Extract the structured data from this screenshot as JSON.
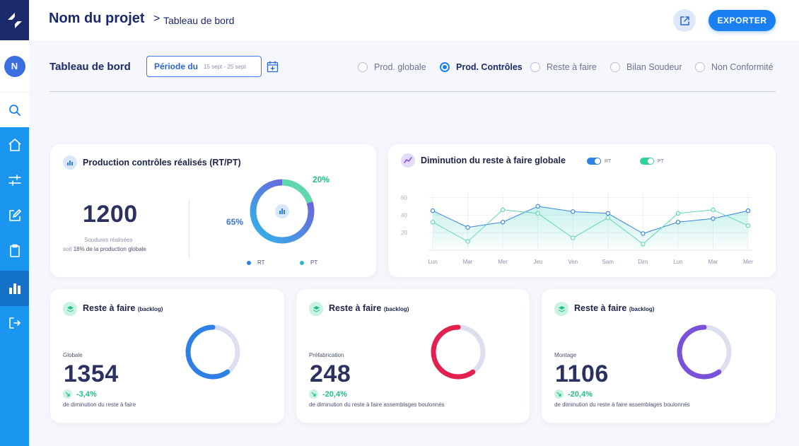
{
  "header": {
    "project_title": "Nom du projet",
    "breadcrumb_sep": ">",
    "breadcrumb": "Tableau de bord",
    "export_label": "EXPORTER"
  },
  "sidebar": {
    "avatar_initial": "N",
    "items": [
      "search-icon",
      "home-icon",
      "sliders-icon",
      "edit-icon",
      "clipboard-icon",
      "bar-chart-icon",
      "logout-icon"
    ],
    "active": "bar-chart-icon",
    "colors": {
      "bar": "#1a96f0",
      "logo_bg": "#1b2a6b",
      "active": "#1372c7"
    }
  },
  "toolbar": {
    "title": "Tableau de bord",
    "period_label": "Période du",
    "period_value": "15 sept - 25 sept",
    "radios": [
      {
        "label": "Prod. globale",
        "checked": false
      },
      {
        "label": "Prod. Contrôles",
        "checked": true
      },
      {
        "label": "Reste à faire",
        "checked": false
      },
      {
        "label": "Bilan Soudeur",
        "checked": false
      },
      {
        "label": "Non Conformité",
        "checked": false
      }
    ]
  },
  "production": {
    "title": "Production contrôles réalisés (RT/PT)",
    "count": "1200",
    "count_label": "Soudures réalisées",
    "share_prefix": "soit",
    "share_value": "18% de la production globale",
    "donut": {
      "rt_pct": 65,
      "pt_pct": 20,
      "rt_label": "65%",
      "pt_label": "20%",
      "legend_rt": "RT",
      "legend_pt": "PT"
    }
  },
  "reste_global": {
    "title": "Diminution du reste à faire globale",
    "legend_rt": "RT",
    "legend_pt": "PT"
  },
  "chart_data": {
    "type": "line",
    "categories": [
      "Lun",
      "Mar",
      "Mer",
      "Jeu",
      "Ven",
      "Sam",
      "Dim",
      "Lun",
      "Mar",
      "Mer"
    ],
    "series": [
      {
        "name": "RT",
        "values": [
          45,
          26,
          32,
          50,
          44,
          42,
          19,
          32,
          36,
          45
        ],
        "color": "#3a86e0"
      },
      {
        "name": "PT",
        "values": [
          32,
          10,
          46,
          42,
          14,
          37,
          7,
          42,
          46,
          28
        ],
        "color": "#5fd8b0"
      }
    ],
    "yticks": [
      20,
      40,
      60
    ],
    "ylim": [
      0,
      66
    ],
    "grid": true
  },
  "backlog_cards": [
    {
      "title": "Reste à faire",
      "title_small": "(backlog)",
      "category": "Globale",
      "value": "1354",
      "trend": "-3,4%",
      "desc": "de diminution du reste à faire",
      "ring_pct": 60,
      "ring_color": "#2e7fe6"
    },
    {
      "title": "Reste à faire",
      "title_small": "(backlog)",
      "category": "Préfabrication",
      "value": "248",
      "trend": "-20,4%",
      "desc": "de diminution du reste à faire assemblages boulonnés",
      "ring_pct": 60,
      "ring_color": "#e3214f"
    },
    {
      "title": "Reste à faire",
      "title_small": "(backlog)",
      "category": "Montage",
      "value": "1106",
      "trend": "-20,4%",
      "desc": "de diminution du reste à faire assemblages boulonnés",
      "ring_pct": 60,
      "ring_color": "#7a52d9"
    }
  ]
}
